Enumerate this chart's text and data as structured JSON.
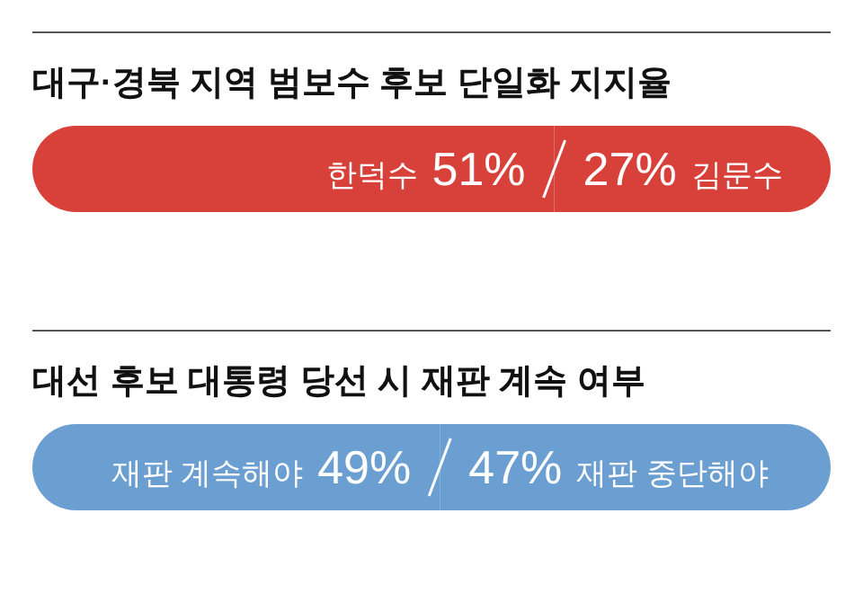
{
  "chart_data": [
    {
      "type": "bar",
      "orientation": "horizontal",
      "stacked": true,
      "title": "대구·경북 지역 범보수 후보 단일화 지지율",
      "categories": [
        null
      ],
      "xlim": [
        0,
        78
      ],
      "series": [
        {
          "name": "한덕수",
          "color": "#d8403a",
          "values": [
            51
          ],
          "value_labels": [
            "51%"
          ]
        },
        {
          "name": "김문수",
          "color": "#d8403a",
          "values": [
            27
          ],
          "value_labels": [
            "27%"
          ]
        }
      ]
    },
    {
      "type": "bar",
      "orientation": "horizontal",
      "stacked": true,
      "title": "대선 후보 대통령 당선 시 재판 계속 여부",
      "categories": [
        null
      ],
      "xlim": [
        0,
        96
      ],
      "series": [
        {
          "name": "재판 계속해야",
          "color": "#6b9fd1",
          "values": [
            49
          ],
          "value_labels": [
            "49%"
          ]
        },
        {
          "name": "재판 중단해야",
          "color": "#6b9fd1",
          "values": [
            47
          ],
          "value_labels": [
            "47%"
          ]
        }
      ]
    }
  ]
}
